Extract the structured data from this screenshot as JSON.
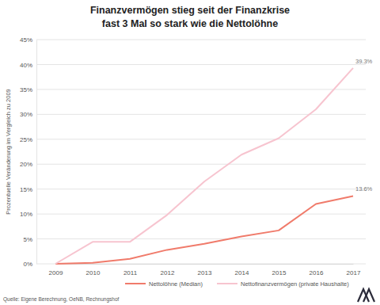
{
  "chart_data": {
    "type": "line",
    "title": "Finanzvermögen stieg seit der Finanzkrise\nfast 3 Mal so stark wie die Nettolöhne",
    "y_label": "Prozentuelle Veränderung im Vergleich zu 2009",
    "source": "Quelle: Eigene Berechnung, OeNB, Rechnungshof",
    "x": [
      2009,
      2010,
      2011,
      2012,
      2013,
      2014,
      2015,
      2016,
      2017
    ],
    "xlim": [
      2009,
      2017
    ],
    "xticks": [
      2009,
      2010,
      2011,
      2012,
      2013,
      2014,
      2015,
      2016,
      2017
    ],
    "ylim": [
      0,
      45
    ],
    "yticks": [
      {
        "value": 0,
        "label": "0%"
      },
      {
        "value": 5,
        "label": "5%"
      },
      {
        "value": 10,
        "label": "10%"
      },
      {
        "value": 15,
        "label": "15%"
      },
      {
        "value": 20,
        "label": "20%"
      },
      {
        "value": 25,
        "label": "25%"
      },
      {
        "value": 30,
        "label": "30%"
      },
      {
        "value": 35,
        "label": "35%"
      },
      {
        "value": 40,
        "label": "40%"
      },
      {
        "value": 45,
        "label": "45%"
      }
    ],
    "grid": true,
    "legend": "bottom",
    "data_labels": true,
    "series": [
      {
        "name": "Nettolöhne (Median)",
        "color": "#f07b6b",
        "values": [
          0,
          0.2,
          1.0,
          2.8,
          4.0,
          5.5,
          6.7,
          12.0,
          13.6
        ],
        "value_labels": [
          null,
          null,
          null,
          null,
          null,
          null,
          null,
          null,
          "13.6%"
        ]
      },
      {
        "name": "Nettofinanzvermögen (private Haushalte)",
        "color": "#f7c4cf",
        "values": [
          0,
          4.4,
          4.4,
          9.8,
          16.5,
          21.9,
          25.2,
          31.0,
          39.3
        ],
        "value_labels": [
          null,
          null,
          null,
          null,
          null,
          null,
          null,
          null,
          "39.3%"
        ]
      }
    ]
  }
}
